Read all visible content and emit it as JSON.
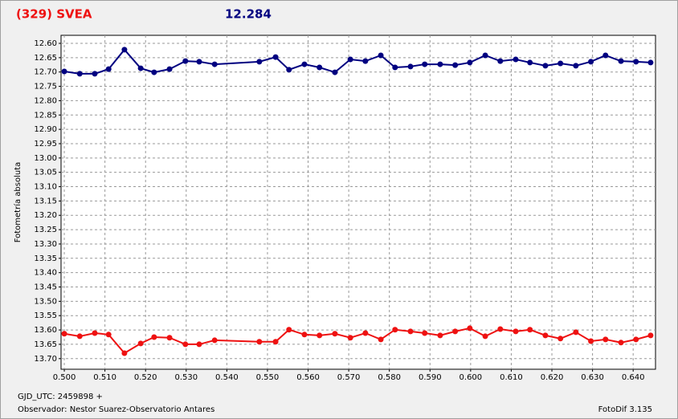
{
  "chart_data": {
    "type": "line",
    "title": "(329) SVEA",
    "subtitle": "12.284",
    "y_label": "Fotometría absoluta",
    "x_label": "GJD_UTC: 2459898 +",
    "footer_left": "Observador: Nestor Suarez-Observatorio Antares",
    "footer_right": "FotoDif 3.135",
    "x": [
      0.5,
      0.5038,
      0.5075,
      0.5109,
      0.5148,
      0.5188,
      0.5221,
      0.5259,
      0.5298,
      0.5332,
      0.537,
      0.548,
      0.552,
      0.5553,
      0.5591,
      0.5628,
      0.5666,
      0.5704,
      0.5741,
      0.5779,
      0.5814,
      0.5852,
      0.5887,
      0.5925,
      0.5962,
      0.5998,
      0.6036,
      0.6073,
      0.6111,
      0.6146,
      0.6184,
      0.6221,
      0.6259,
      0.6296,
      0.6332,
      0.637,
      0.6407,
      0.6443
    ],
    "series": [
      {
        "color": "#000080",
        "values": [
          12.698,
          12.706,
          12.706,
          12.69,
          12.622,
          12.687,
          12.701,
          12.69,
          12.662,
          12.664,
          12.673,
          12.664,
          12.648,
          12.692,
          12.673,
          12.684,
          12.701,
          12.656,
          12.662,
          12.642,
          12.684,
          12.681,
          12.673,
          12.673,
          12.676,
          12.667,
          12.642,
          12.662,
          12.656,
          12.667,
          12.678,
          12.67,
          12.678,
          12.664,
          12.642,
          12.662,
          12.664,
          12.667
        ]
      },
      {
        "color": "#ee1111",
        "values": [
          13.613,
          13.622,
          13.611,
          13.616,
          13.681,
          13.647,
          13.625,
          13.627,
          13.65,
          13.65,
          13.636,
          13.641,
          13.641,
          13.599,
          13.616,
          13.619,
          13.613,
          13.627,
          13.611,
          13.633,
          13.599,
          13.605,
          13.611,
          13.619,
          13.605,
          13.594,
          13.622,
          13.597,
          13.605,
          13.599,
          13.619,
          13.63,
          13.608,
          13.639,
          13.633,
          13.644,
          13.633,
          13.619
        ]
      }
    ],
    "xlim": [
      0.4992,
      0.6455
    ],
    "ylim": [
      12.572,
      13.737
    ],
    "y_inverted": true,
    "grid": true,
    "xticks": [
      {
        "value": 0.5,
        "label": "0.500"
      },
      {
        "value": 0.51,
        "label": "0.510"
      },
      {
        "value": 0.52,
        "label": "0.520"
      },
      {
        "value": 0.53,
        "label": "0.530"
      },
      {
        "value": 0.54,
        "label": "0.540"
      },
      {
        "value": 0.55,
        "label": "0.550"
      },
      {
        "value": 0.56,
        "label": "0.560"
      },
      {
        "value": 0.57,
        "label": "0.570"
      },
      {
        "value": 0.58,
        "label": "0.580"
      },
      {
        "value": 0.59,
        "label": "0.590"
      },
      {
        "value": 0.6,
        "label": "0.600"
      },
      {
        "value": 0.61,
        "label": "0.610"
      },
      {
        "value": 0.62,
        "label": "0.620"
      },
      {
        "value": 0.63,
        "label": "0.630"
      },
      {
        "value": 0.64,
        "label": "0.640"
      }
    ],
    "yticks": [
      {
        "value": 12.6,
        "label": "12.60"
      },
      12.65,
      {
        "value": 12.7,
        "label": "12.70"
      },
      12.75,
      {
        "value": 12.8,
        "label": "12.80"
      },
      12.85,
      {
        "value": 12.9,
        "label": "12.90"
      },
      12.95,
      {
        "value": 13,
        "label": "13.00"
      },
      13.05,
      {
        "value": 13.1,
        "label": "13.10"
      },
      13.15,
      {
        "value": 13.2,
        "label": "13.20"
      },
      13.25,
      {
        "value": 13.3,
        "label": "13.30"
      },
      13.35,
      {
        "value": 13.4,
        "label": "13.40"
      },
      13.45,
      {
        "value": 13.5,
        "label": "13.50"
      },
      13.55,
      {
        "value": 13.6,
        "label": "13.60"
      },
      13.65,
      {
        "value": 13.7,
        "label": "13.70"
      }
    ]
  }
}
